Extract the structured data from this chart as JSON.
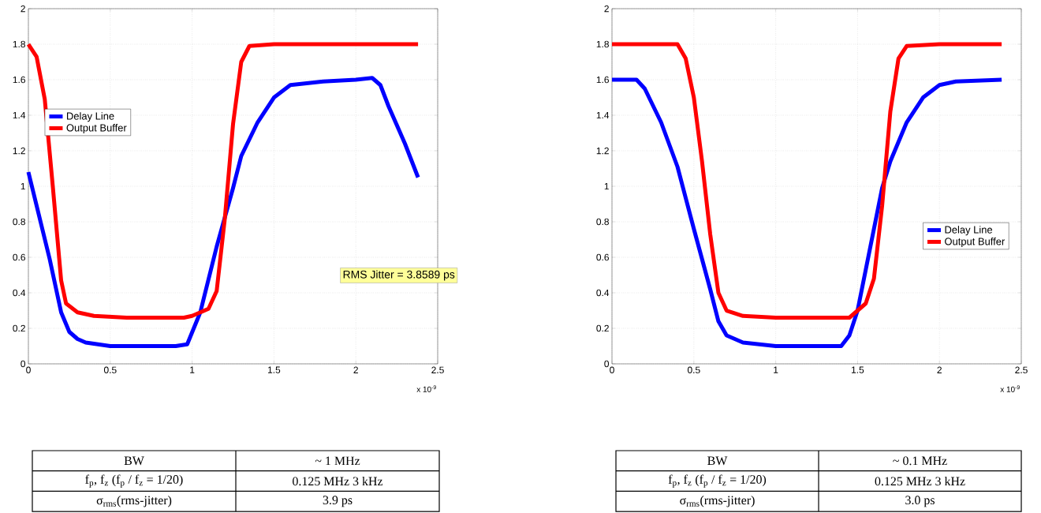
{
  "chart_data": [
    {
      "type": "line",
      "xlim": [
        0,
        2.5
      ],
      "ylim": [
        0,
        2
      ],
      "xticks": [
        0,
        0.5,
        1,
        1.5,
        2,
        2.5
      ],
      "yticks": [
        0,
        0.2,
        0.4,
        0.6,
        0.8,
        1,
        1.2,
        1.4,
        1.6,
        1.8,
        2
      ],
      "grid": true,
      "legend": "left",
      "series": [
        {
          "name": "Delay Line",
          "color": "#0000ff",
          "x": [
            0,
            0.13,
            0.2,
            0.25,
            0.3,
            0.35,
            0.5,
            0.7,
            0.9,
            0.97,
            1.05,
            1.15,
            1.25,
            1.3,
            1.4,
            1.5,
            1.6,
            1.8,
            2.0,
            2.1,
            2.15,
            2.2,
            2.3,
            2.38
          ],
          "values": [
            1.08,
            0.59,
            0.29,
            0.18,
            0.14,
            0.12,
            0.1,
            0.1,
            0.1,
            0.11,
            0.29,
            0.66,
            0.99,
            1.17,
            1.36,
            1.5,
            1.57,
            1.59,
            1.6,
            1.61,
            1.57,
            1.45,
            1.24,
            1.05
          ]
        },
        {
          "name": "Output Buffer",
          "color": "#ff0000",
          "x": [
            0,
            0.05,
            0.1,
            0.15,
            0.2,
            0.23,
            0.3,
            0.4,
            0.6,
            0.8,
            0.95,
            1.0,
            1.1,
            1.15,
            1.2,
            1.25,
            1.3,
            1.35,
            1.5,
            1.8,
            2.1,
            2.38
          ],
          "values": [
            1.8,
            1.73,
            1.49,
            0.99,
            0.47,
            0.34,
            0.29,
            0.27,
            0.26,
            0.26,
            0.26,
            0.27,
            0.31,
            0.41,
            0.82,
            1.35,
            1.7,
            1.79,
            1.8,
            1.8,
            1.8,
            1.8
          ]
        }
      ],
      "annotations": [
        "x 10$^{-9}$",
        "BW",
        "~ 1 MHz",
        "f$_{p}$, f$_{z}$ (f$_{p}$ / f$_{z}$ = 1/20)",
        "0.125 MHz 3 kHz",
        "σ$_{rms}$(rms-jitter)",
        "3.9 ps",
        "RMS Jitter = 3.8589 ps"
      ]
    },
    {
      "type": "line",
      "xlim": [
        0,
        2.5
      ],
      "ylim": [
        0,
        2
      ],
      "xticks": [
        0,
        0.5,
        1,
        1.5,
        2,
        2.5
      ],
      "yticks": [
        0,
        0.2,
        0.4,
        0.6,
        0.8,
        1,
        1.2,
        1.4,
        1.6,
        1.8,
        2
      ],
      "grid": true,
      "legend": "right",
      "series": [
        {
          "name": "Delay Line",
          "color": "#0000ff",
          "x": [
            0,
            0.15,
            0.2,
            0.3,
            0.4,
            0.5,
            0.6,
            0.65,
            0.7,
            0.8,
            1.0,
            1.2,
            1.4,
            1.45,
            1.5,
            1.55,
            1.6,
            1.65,
            1.7,
            1.8,
            1.9,
            2.0,
            2.1,
            2.38
          ],
          "values": [
            1.6,
            1.6,
            1.55,
            1.36,
            1.11,
            0.76,
            0.42,
            0.24,
            0.16,
            0.12,
            0.1,
            0.1,
            0.1,
            0.16,
            0.3,
            0.53,
            0.76,
            0.99,
            1.14,
            1.36,
            1.5,
            1.57,
            1.59,
            1.6
          ]
        },
        {
          "name": "Output Buffer",
          "color": "#ff0000",
          "x": [
            0,
            0.2,
            0.4,
            0.45,
            0.5,
            0.55,
            0.6,
            0.65,
            0.7,
            0.8,
            1.0,
            1.2,
            1.45,
            1.5,
            1.55,
            1.6,
            1.65,
            1.7,
            1.75,
            1.8,
            2.0,
            2.38
          ],
          "values": [
            1.8,
            1.8,
            1.8,
            1.72,
            1.5,
            1.14,
            0.73,
            0.4,
            0.3,
            0.27,
            0.26,
            0.26,
            0.26,
            0.3,
            0.34,
            0.48,
            0.89,
            1.42,
            1.72,
            1.79,
            1.8,
            1.8
          ]
        }
      ],
      "annotations": [
        "x 10$^{-9}$",
        "BW",
        "~ 0.1 MHz",
        "f$_{p}$, f$_{z}$ (f$_{p}$ / f$_{z}$ = 1/20)",
        "0.125 MHz 3 kHz",
        "σ$_{rms}$(rms-jitter)",
        "3.0 ps"
      ]
    }
  ]
}
